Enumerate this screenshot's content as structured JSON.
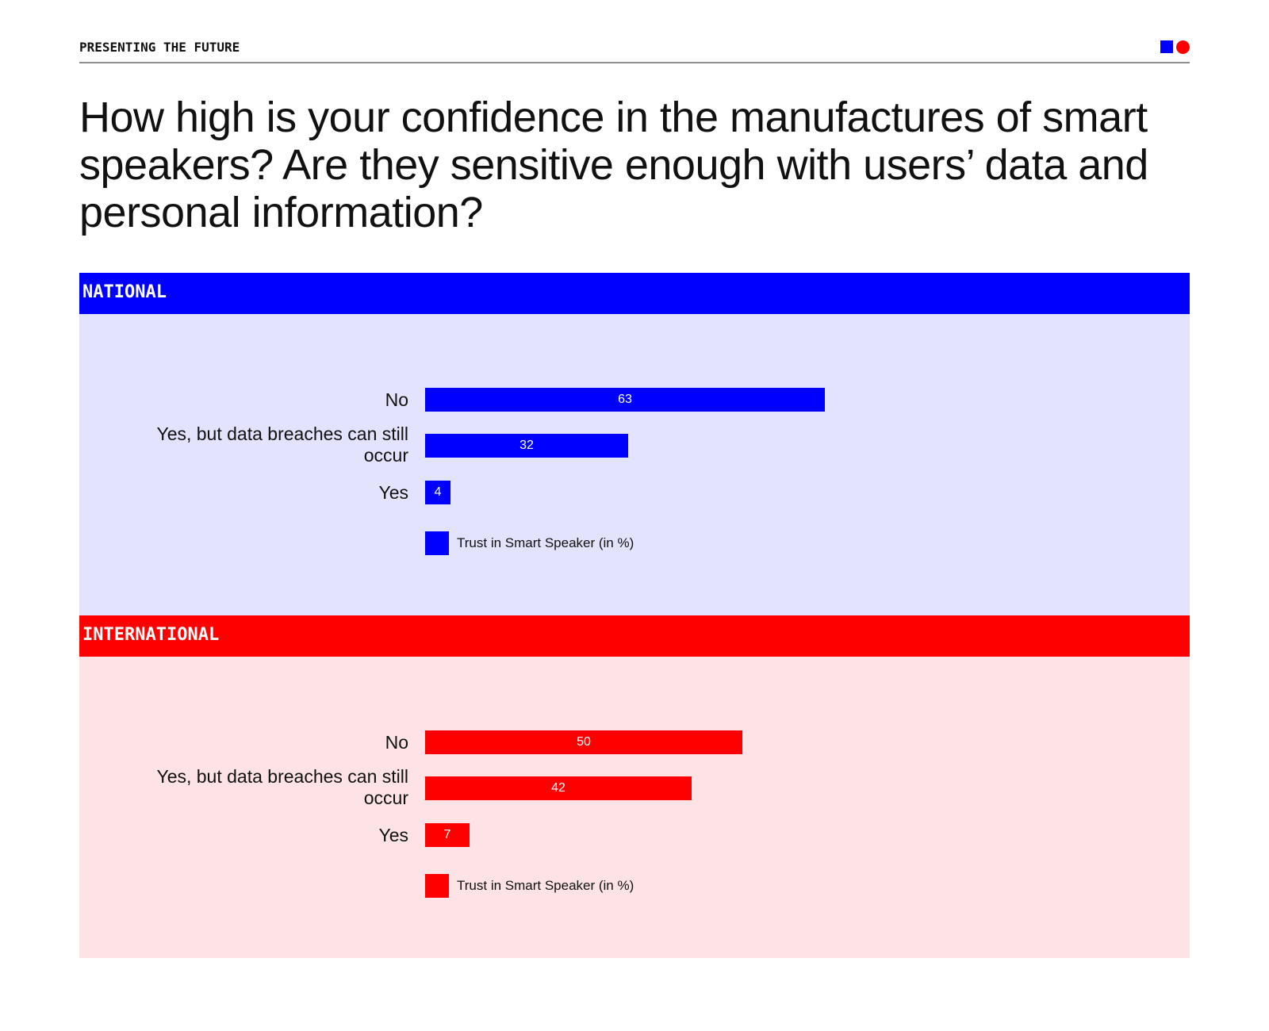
{
  "header": {
    "label": "PRESENTING THE FUTURE"
  },
  "title": "How high is your confidence in the manufactures of smart speakers? Are they sensitive enough with users’ data and personal information?",
  "chart_data": [
    {
      "type": "bar",
      "orientation": "horizontal",
      "section": "NATIONAL",
      "color": "#0000ff",
      "background": "#e3e3fd",
      "categories": [
        "No",
        "Yes, but data breaches can still occur",
        "Yes"
      ],
      "values": [
        63,
        32,
        4
      ],
      "legend": "Trust in Smart Speaker (in %)",
      "xlim": [
        0,
        100
      ],
      "grid": false
    },
    {
      "type": "bar",
      "orientation": "horizontal",
      "section": "INTERNATIONAL",
      "color": "#ff0000",
      "background": "#fde3e5",
      "categories": [
        "No",
        "Yes, but data breaches can still occur",
        "Yes"
      ],
      "values": [
        50,
        42,
        7
      ],
      "legend": "Trust in Smart Speaker (in %)",
      "xlim": [
        0,
        100
      ],
      "grid": false
    }
  ]
}
